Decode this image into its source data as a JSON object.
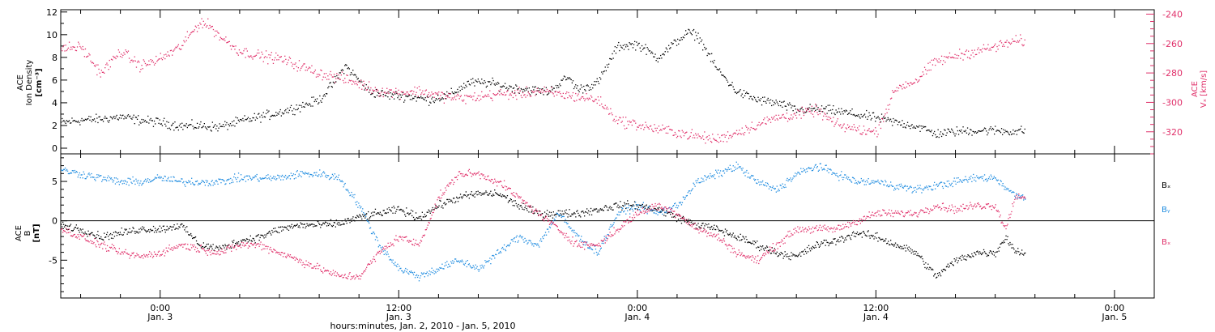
{
  "colors": {
    "black": "#000000",
    "red": "#e0306a",
    "blue": "#1f8ce0"
  },
  "time_axis": {
    "xlabel": "hours:minutes, Jan. 2, 2010 - Jan. 5, 2010",
    "xlim_hours": [
      -5,
      50
    ],
    "ticks": [
      {
        "hour": 0,
        "time": "0:00",
        "date": "Jan. 3"
      },
      {
        "hour": 12,
        "time": "12:00",
        "date": "Jan. 3"
      },
      {
        "hour": 24,
        "time": "0:00",
        "date": "Jan. 4"
      },
      {
        "hour": 36,
        "time": "12:00",
        "date": "Jan. 4"
      },
      {
        "hour": 48,
        "time": "0:00",
        "date": "Jan. 5"
      }
    ]
  },
  "chart_data": [
    {
      "type": "scatter",
      "panel": "top",
      "ylabel_left": [
        "ACE",
        "Ion Density",
        "[cm⁻³]"
      ],
      "ylabel_right": [
        "ACE",
        "Vₓ [km/s]"
      ],
      "ylim_left": [
        -0.5,
        12.2
      ],
      "ylim_right": [
        -335,
        -237
      ],
      "left_ticks": [
        "0",
        "2",
        "4",
        "6",
        "8",
        "10",
        "12"
      ],
      "right_ticks": [
        "-240",
        "-260",
        "-280",
        "-300",
        "-320"
      ],
      "series": [
        {
          "axis": "left",
          "color": "black",
          "points": [
            [
              -5,
              2.3
            ],
            [
              -4,
              2.5
            ],
            [
              -3,
              2.6
            ],
            [
              -2,
              2.8
            ],
            [
              -1,
              2.5
            ],
            [
              0,
              2.3
            ],
            [
              1,
              2.0
            ],
            [
              2,
              2.0
            ],
            [
              3,
              1.9
            ],
            [
              4,
              2.4
            ],
            [
              5,
              2.8
            ],
            [
              6,
              3.2
            ],
            [
              7,
              3.7
            ],
            [
              8,
              4.3
            ],
            [
              8.8,
              6.0
            ],
            [
              9.3,
              7.3
            ],
            [
              10,
              6.0
            ],
            [
              10.5,
              5.0
            ],
            [
              11.5,
              4.7
            ],
            [
              12.5,
              4.6
            ],
            [
              13.5,
              4.3
            ],
            [
              14.5,
              4.7
            ],
            [
              15.5,
              5.8
            ],
            [
              16.5,
              5.8
            ],
            [
              17.5,
              5.4
            ],
            [
              18.5,
              5.2
            ],
            [
              19.5,
              5.0
            ],
            [
              20.5,
              6.3
            ],
            [
              21,
              5.2
            ],
            [
              22,
              5.8
            ],
            [
              23,
              9.0
            ],
            [
              24,
              9.2
            ],
            [
              25,
              8.0
            ],
            [
              26,
              9.5
            ],
            [
              26.5,
              10.2
            ],
            [
              27,
              10.0
            ],
            [
              28,
              7.0
            ],
            [
              29,
              5.0
            ],
            [
              30,
              4.3
            ],
            [
              31,
              4.0
            ],
            [
              32,
              3.4
            ],
            [
              33,
              3.5
            ],
            [
              34,
              3.3
            ],
            [
              35,
              3.0
            ],
            [
              36,
              2.7
            ],
            [
              37,
              2.3
            ],
            [
              38,
              2.0
            ],
            [
              39,
              1.3
            ],
            [
              40,
              1.5
            ],
            [
              41,
              1.6
            ],
            [
              42,
              1.6
            ],
            [
              43,
              1.5
            ],
            [
              43.5,
              1.6
            ]
          ]
        },
        {
          "axis": "right",
          "color": "red",
          "points": [
            [
              -5,
              -263
            ],
            [
              -4,
              -262
            ],
            [
              -3,
              -280
            ],
            [
              -2,
              -265
            ],
            [
              -1,
              -275
            ],
            [
              0,
              -270
            ],
            [
              1,
              -262
            ],
            [
              2,
              -245
            ],
            [
              2.5,
              -248
            ],
            [
              3,
              -255
            ],
            [
              4,
              -265
            ],
            [
              5,
              -268
            ],
            [
              6,
              -270
            ],
            [
              7,
              -275
            ],
            [
              8,
              -280
            ],
            [
              9,
              -283
            ],
            [
              10,
              -287
            ],
            [
              11,
              -292
            ],
            [
              12,
              -293
            ],
            [
              13,
              -292
            ],
            [
              14,
              -295
            ],
            [
              15,
              -297
            ],
            [
              16,
              -296
            ],
            [
              17,
              -294
            ],
            [
              18,
              -294
            ],
            [
              19,
              -292
            ],
            [
              20,
              -294
            ],
            [
              21,
              -296
            ],
            [
              22,
              -298
            ],
            [
              23,
              -312
            ],
            [
              24,
              -315
            ],
            [
              25,
              -318
            ],
            [
              26,
              -320
            ],
            [
              27,
              -323
            ],
            [
              28,
              -325
            ],
            [
              29,
              -320
            ],
            [
              30,
              -315
            ],
            [
              31,
              -310
            ],
            [
              32,
              -308
            ],
            [
              33,
              -305
            ],
            [
              34,
              -315
            ],
            [
              35,
              -318
            ],
            [
              36,
              -320
            ],
            [
              37,
              -290
            ],
            [
              38,
              -285
            ],
            [
              39,
              -272
            ],
            [
              40,
              -268
            ],
            [
              41,
              -265
            ],
            [
              42,
              -262
            ],
            [
              43,
              -258
            ],
            [
              43.5,
              -258
            ]
          ]
        }
      ]
    },
    {
      "type": "scatter",
      "panel": "bottom",
      "ylabel_left": [
        "ACE",
        "B",
        "[nT]"
      ],
      "ylim": [
        -9.8,
        8.5
      ],
      "left_ticks": [
        "-5",
        "0",
        "5"
      ],
      "legend": [
        "Bₓ",
        "Bᵧ",
        "Bₓ"
      ],
      "series": [
        {
          "name": "Bx",
          "color": "black",
          "points": [
            [
              -5,
              -0.5
            ],
            [
              -4,
              -1
            ],
            [
              -3,
              -2
            ],
            [
              -2,
              -1.5
            ],
            [
              -1,
              -1
            ],
            [
              0,
              -1
            ],
            [
              1,
              -0.5
            ],
            [
              2,
              -3
            ],
            [
              3,
              -3.5
            ],
            [
              4,
              -2.5
            ],
            [
              5,
              -2
            ],
            [
              6,
              -1
            ],
            [
              7,
              -0.5
            ],
            [
              8,
              -0.5
            ],
            [
              9,
              -0.3
            ],
            [
              10,
              0.5
            ],
            [
              11,
              1
            ],
            [
              12,
              1.5
            ],
            [
              13,
              0.5
            ],
            [
              14,
              2
            ],
            [
              15,
              3
            ],
            [
              16,
              3.5
            ],
            [
              17,
              3.5
            ],
            [
              18,
              2
            ],
            [
              19,
              1
            ],
            [
              20,
              1
            ],
            [
              21,
              1
            ],
            [
              22,
              1.5
            ],
            [
              23,
              2
            ],
            [
              24,
              2
            ],
            [
              25,
              1.5
            ],
            [
              26,
              0.5
            ],
            [
              27,
              -0.5
            ],
            [
              28,
              -1
            ],
            [
              29,
              -2
            ],
            [
              30,
              -3
            ],
            [
              31,
              -4
            ],
            [
              32,
              -4.5
            ],
            [
              33,
              -3
            ],
            [
              34,
              -2.5
            ],
            [
              35,
              -1.5
            ],
            [
              36,
              -2
            ],
            [
              37,
              -3
            ],
            [
              38,
              -4
            ],
            [
              39,
              -7
            ],
            [
              40,
              -5
            ],
            [
              41,
              -4
            ],
            [
              42,
              -4
            ],
            [
              42.5,
              -2
            ],
            [
              43,
              -3.8
            ],
            [
              43.5,
              -4
            ]
          ]
        },
        {
          "name": "By",
          "color": "blue",
          "points": [
            [
              -5,
              6.5
            ],
            [
              -4,
              6
            ],
            [
              -3,
              5.5
            ],
            [
              -2,
              5
            ],
            [
              -1,
              5
            ],
            [
              0,
              5.5
            ],
            [
              1,
              5
            ],
            [
              2,
              5
            ],
            [
              3,
              5
            ],
            [
              4,
              5.5
            ],
            [
              5,
              5.5
            ],
            [
              6,
              5.5
            ],
            [
              7,
              6
            ],
            [
              8,
              6
            ],
            [
              9,
              5.5
            ],
            [
              10,
              2
            ],
            [
              11,
              -3
            ],
            [
              12,
              -6
            ],
            [
              13,
              -7
            ],
            [
              14,
              -6
            ],
            [
              15,
              -5
            ],
            [
              16,
              -6
            ],
            [
              17,
              -4
            ],
            [
              18,
              -2
            ],
            [
              19,
              -3
            ],
            [
              20,
              1
            ],
            [
              21,
              -2
            ],
            [
              22,
              -4
            ],
            [
              23,
              1
            ],
            [
              24,
              2
            ],
            [
              25,
              1
            ],
            [
              26,
              2
            ],
            [
              27,
              5
            ],
            [
              28,
              6
            ],
            [
              29,
              7
            ],
            [
              30,
              5
            ],
            [
              31,
              4
            ],
            [
              32,
              6
            ],
            [
              33,
              7
            ],
            [
              34,
              6
            ],
            [
              35,
              5
            ],
            [
              36,
              5
            ],
            [
              37,
              4.5
            ],
            [
              38,
              4
            ],
            [
              39,
              4.5
            ],
            [
              40,
              5
            ],
            [
              41,
              5.5
            ],
            [
              42,
              5.5
            ],
            [
              43,
              3.2
            ],
            [
              43.5,
              3.2
            ]
          ]
        },
        {
          "name": "Bz",
          "color": "red",
          "points": [
            [
              -5,
              -1
            ],
            [
              -4,
              -2
            ],
            [
              -3,
              -3
            ],
            [
              -2,
              -4
            ],
            [
              -1,
              -4.5
            ],
            [
              0,
              -4
            ],
            [
              1,
              -3
            ],
            [
              2,
              -3.5
            ],
            [
              3,
              -4
            ],
            [
              4,
              -3
            ],
            [
              5,
              -3
            ],
            [
              6,
              -4
            ],
            [
              7,
              -5
            ],
            [
              8,
              -6
            ],
            [
              9,
              -7
            ],
            [
              10,
              -7
            ],
            [
              11,
              -4
            ],
            [
              12,
              -2
            ],
            [
              13,
              -3
            ],
            [
              14,
              3
            ],
            [
              15,
              6
            ],
            [
              16,
              6
            ],
            [
              17,
              5
            ],
            [
              18,
              3
            ],
            [
              19,
              1
            ],
            [
              20,
              -1
            ],
            [
              21,
              -3
            ],
            [
              22,
              -3
            ],
            [
              23,
              -1
            ],
            [
              24,
              1
            ],
            [
              25,
              2
            ],
            [
              26,
              1
            ],
            [
              27,
              -1
            ],
            [
              28,
              -2
            ],
            [
              29,
              -4
            ],
            [
              30,
              -5
            ],
            [
              31,
              -3
            ],
            [
              32,
              -1
            ],
            [
              33,
              -1
            ],
            [
              34,
              -1
            ],
            [
              35,
              0
            ],
            [
              36,
              1
            ],
            [
              37,
              1
            ],
            [
              38,
              1
            ],
            [
              39,
              2
            ],
            [
              40,
              1.5
            ],
            [
              41,
              2
            ],
            [
              42,
              2
            ],
            [
              42.5,
              -1
            ],
            [
              43,
              3.2
            ],
            [
              43.5,
              3.2
            ]
          ]
        }
      ]
    }
  ]
}
